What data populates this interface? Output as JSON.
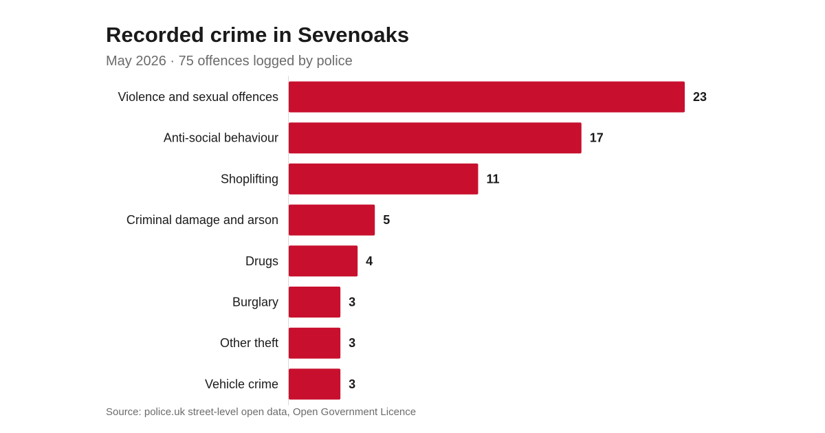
{
  "chart_data": {
    "type": "bar",
    "orientation": "horizontal",
    "title": "Recorded crime in Sevenoaks",
    "subtitle": "May 2026 · 75 offences logged by police",
    "categories": [
      "Violence and sexual offences",
      "Anti-social behaviour",
      "Shoplifting",
      "Criminal damage and arson",
      "Drugs",
      "Burglary",
      "Other theft",
      "Vehicle crime"
    ],
    "values": [
      23,
      17,
      11,
      5,
      4,
      3,
      3,
      3
    ],
    "xlim": [
      0,
      23
    ],
    "grid": false,
    "legend": "none",
    "bar_color": "#c8102e",
    "source": "Source: police.uk street-level open data, Open Government Licence"
  }
}
